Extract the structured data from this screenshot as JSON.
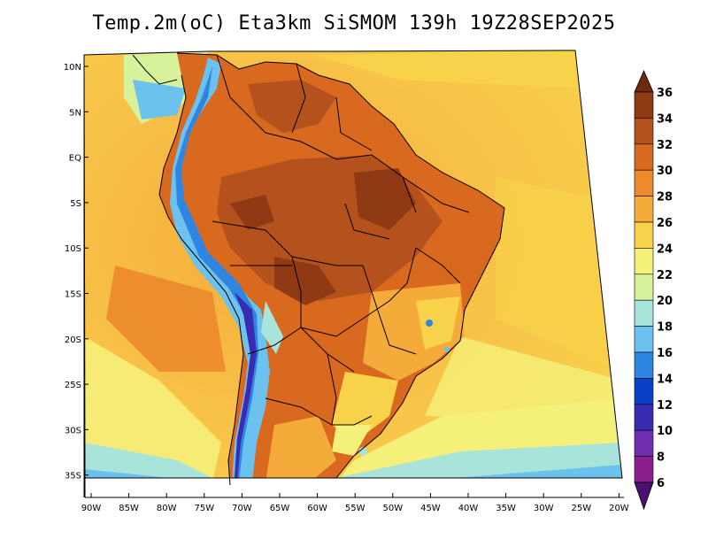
{
  "title": "Temp.2m(oC) Eta3km SiSMOM 139h 19Z28SEP2025",
  "map": {
    "lat_labels": [
      "10N",
      "5N",
      "EQ",
      "5S",
      "10S",
      "15S",
      "20S",
      "25S",
      "30S",
      "35S"
    ],
    "lon_labels": [
      "90W",
      "85W",
      "80W",
      "75W",
      "70W",
      "65W",
      "60W",
      "55W",
      "50W",
      "45W",
      "40W",
      "35W",
      "30W",
      "25W",
      "20W"
    ],
    "lat_range": [
      10,
      -35
    ],
    "lon_range": [
      -90,
      -20
    ]
  },
  "colorbar": {
    "labels": [
      "36",
      "34",
      "32",
      "30",
      "28",
      "26",
      "24",
      "22",
      "20",
      "18",
      "16",
      "14",
      "12",
      "10",
      "8",
      "6"
    ],
    "colors": [
      "#6e2a0c",
      "#8f3a14",
      "#b5511c",
      "#d8691f",
      "#ec8a2c",
      "#f5ab3a",
      "#f8d349",
      "#f5f07a",
      "#d7f29a",
      "#a8e4d9",
      "#6cc2ee",
      "#2f86e0",
      "#0a3fc6",
      "#3a2bb3",
      "#6f2fb0",
      "#8a1f8c",
      "#4a1070"
    ]
  }
}
